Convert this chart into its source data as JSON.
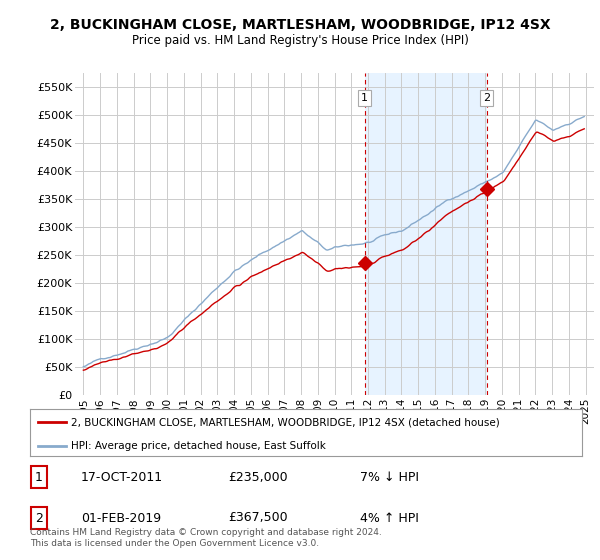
{
  "title": "2, BUCKINGHAM CLOSE, MARTLESHAM, WOODBRIDGE, IP12 4SX",
  "subtitle": "Price paid vs. HM Land Registry's House Price Index (HPI)",
  "legend_label1": "2, BUCKINGHAM CLOSE, MARTLESHAM, WOODBRIDGE, IP12 4SX (detached house)",
  "legend_label2": "HPI: Average price, detached house, East Suffolk",
  "annotation1_date": "17-OCT-2011",
  "annotation1_price": "£235,000",
  "annotation1_hpi": "7% ↓ HPI",
  "annotation2_date": "01-FEB-2019",
  "annotation2_price": "£367,500",
  "annotation2_hpi": "4% ↑ HPI",
  "footnote": "Contains HM Land Registry data © Crown copyright and database right 2024.\nThis data is licensed under the Open Government Licence v3.0.",
  "line1_color": "#cc0000",
  "line2_color": "#88aacc",
  "shade_color": "#ddeeff",
  "background_color": "#ffffff",
  "plot_bg_color": "#ffffff",
  "grid_color": "#cccccc",
  "ylim_min": 0,
  "ylim_max": 575000,
  "yticks": [
    0,
    50000,
    100000,
    150000,
    200000,
    250000,
    300000,
    350000,
    400000,
    450000,
    500000,
    550000
  ],
  "ytick_labels": [
    "£0",
    "£50K",
    "£100K",
    "£150K",
    "£200K",
    "£250K",
    "£300K",
    "£350K",
    "£400K",
    "£450K",
    "£500K",
    "£550K"
  ],
  "sale1_x": 2011.8,
  "sale1_y": 235000,
  "sale2_x": 2019.08,
  "sale2_y": 367500,
  "vline1_x": 2011.8,
  "vline2_x": 2019.08,
  "xlim_min": 1994.5,
  "xlim_max": 2025.5
}
